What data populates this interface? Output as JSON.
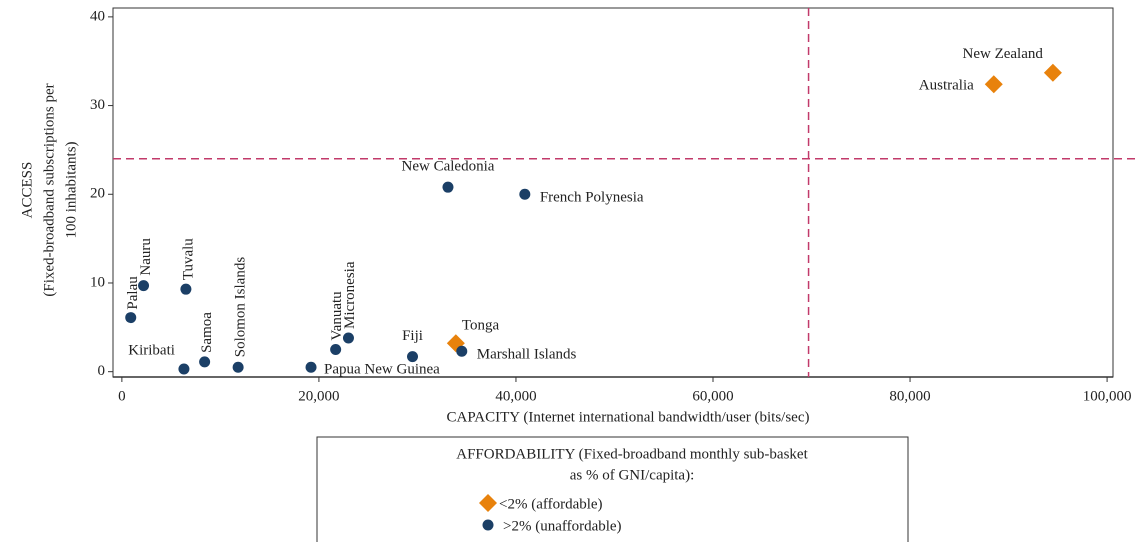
{
  "chart_data": {
    "type": "scatter",
    "xlabel": "CAPACITY (Internet international bandwidth/user (bits/sec)",
    "ylabel": [
      "ACCESS",
      "(Fixed-broadband subscriptions per",
      "100 inhabitants)"
    ],
    "xlim": [
      -900,
      100600
    ],
    "ylim": [
      -0.6,
      41
    ],
    "xticks": [
      0,
      {
        "value": 20000,
        "label": "20,000"
      },
      {
        "value": 40000,
        "label": "40,000"
      },
      {
        "value": 60000,
        "label": "60,000"
      },
      {
        "value": 80000,
        "label": "80,000"
      },
      {
        "value": 100000,
        "label": "100,000"
      }
    ],
    "yticks": [
      0,
      10,
      20,
      30,
      40
    ],
    "vline": 69700,
    "hline": 24,
    "legend_title": [
      "AFFORDABILITY (Fixed-broadband monthly sub-basket",
      "as % of GNI/capita):"
    ],
    "series": [
      {
        "name": "<2% (affordable)",
        "color": "#e8820c",
        "marker": "diamond",
        "labels": [
          "New Zealand",
          "Australia",
          "Tonga"
        ],
        "x": [
          94500,
          88500,
          33900
        ],
        "values": [
          33.7,
          32.4,
          3.2
        ]
      },
      {
        "name": ">2% (unaffordable)",
        "color": "#1b3f66",
        "marker": "circle",
        "labels": [
          "New Caledonia",
          "French Polynesia",
          "Palau",
          "Nauru",
          "Tuvalu",
          "Samoa",
          "Kiribati",
          "Solomon Islands",
          "Papua New Guinea",
          "Vanuatu",
          "Micronesia",
          "Fiji",
          "Marshall Islands"
        ],
        "x": [
          33100,
          40900,
          900,
          2200,
          6500,
          8400,
          6300,
          11800,
          19200,
          21700,
          23000,
          29500,
          34500
        ],
        "values": [
          20.8,
          20,
          6.1,
          9.7,
          9.3,
          1.1,
          0.3,
          0.5,
          0.5,
          2.5,
          3.8,
          1.7,
          2.3
        ]
      }
    ]
  }
}
